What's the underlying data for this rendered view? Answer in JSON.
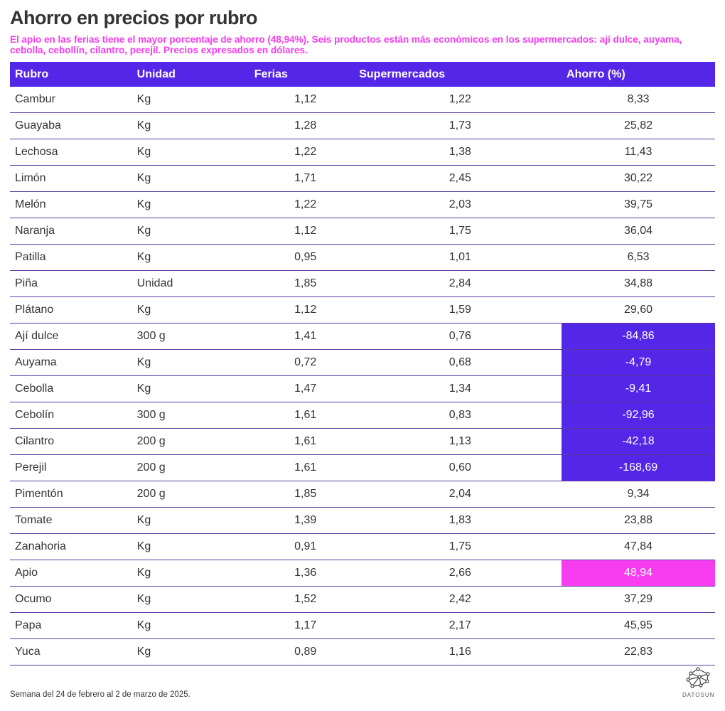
{
  "title": "Ahorro en precios por rubro",
  "subtitle": "El apio en las ferias tiene el mayor porcentaje de ahorro (48,94%). Seis productos están más económicos en los supermercados: ají dulce, auyama, cebolla, cebollín, cilantro, perejil. Precios expresados en dólares.",
  "footer": "Semana del 24 de febrero al 2 de marzo de 2025.",
  "logo": "DATOSUN",
  "colors": {
    "header": "#5426e8",
    "negative": "#5426e8",
    "max": "#f73bf0"
  },
  "chart_data": {
    "type": "table",
    "columns": [
      "Rubro",
      "Unidad",
      "Ferias",
      "Supermercados",
      "Ahorro (%)"
    ],
    "rows": [
      [
        "Cambur",
        "Kg",
        "1,12",
        "1,22",
        "8,33"
      ],
      [
        "Guayaba",
        "Kg",
        "1,28",
        "1,73",
        "25,82"
      ],
      [
        "Lechosa",
        "Kg",
        "1,22",
        "1,38",
        "11,43"
      ],
      [
        "Limón",
        "Kg",
        "1,71",
        "2,45",
        "30,22"
      ],
      [
        "Melón",
        "Kg",
        "1,22",
        "2,03",
        "39,75"
      ],
      [
        "Naranja",
        "Kg",
        "1,12",
        "1,75",
        "36,04"
      ],
      [
        "Patilla",
        "Kg",
        "0,95",
        "1,01",
        "6,53"
      ],
      [
        "Piña",
        "Unidad",
        "1,85",
        "2,84",
        "34,88"
      ],
      [
        "Plátano",
        "Kg",
        "1,12",
        "1,59",
        "29,60"
      ],
      [
        "Ají dulce",
        "300 g",
        "1,41",
        "0,76",
        "-84,86"
      ],
      [
        "Auyama",
        "Kg",
        "0,72",
        "0,68",
        "-4,79"
      ],
      [
        "Cebolla",
        "Kg",
        "1,47",
        "1,34",
        "-9,41"
      ],
      [
        "Cebolín",
        "300 g",
        "1,61",
        "0,83",
        "-92,96"
      ],
      [
        "Cilantro",
        "200 g",
        "1,61",
        "1,13",
        "-42,18"
      ],
      [
        "Perejil",
        "200 g",
        "1,61",
        "0,60",
        "-168,69"
      ],
      [
        "Pimentón",
        "200 g",
        "1,85",
        "2,04",
        "9,34"
      ],
      [
        "Tomate",
        "Kg",
        "1,39",
        "1,83",
        "23,88"
      ],
      [
        "Zanahoria",
        "Kg",
        "0,91",
        "1,75",
        "47,84"
      ],
      [
        "Apio",
        "Kg",
        "1,36",
        "2,66",
        "48,94"
      ],
      [
        "Ocumo",
        "Kg",
        "1,52",
        "2,42",
        "37,29"
      ],
      [
        "Papa",
        "Kg",
        "1,17",
        "2,17",
        "45,95"
      ],
      [
        "Yuca",
        "Kg",
        "0,89",
        "1,16",
        "22,83"
      ]
    ]
  }
}
